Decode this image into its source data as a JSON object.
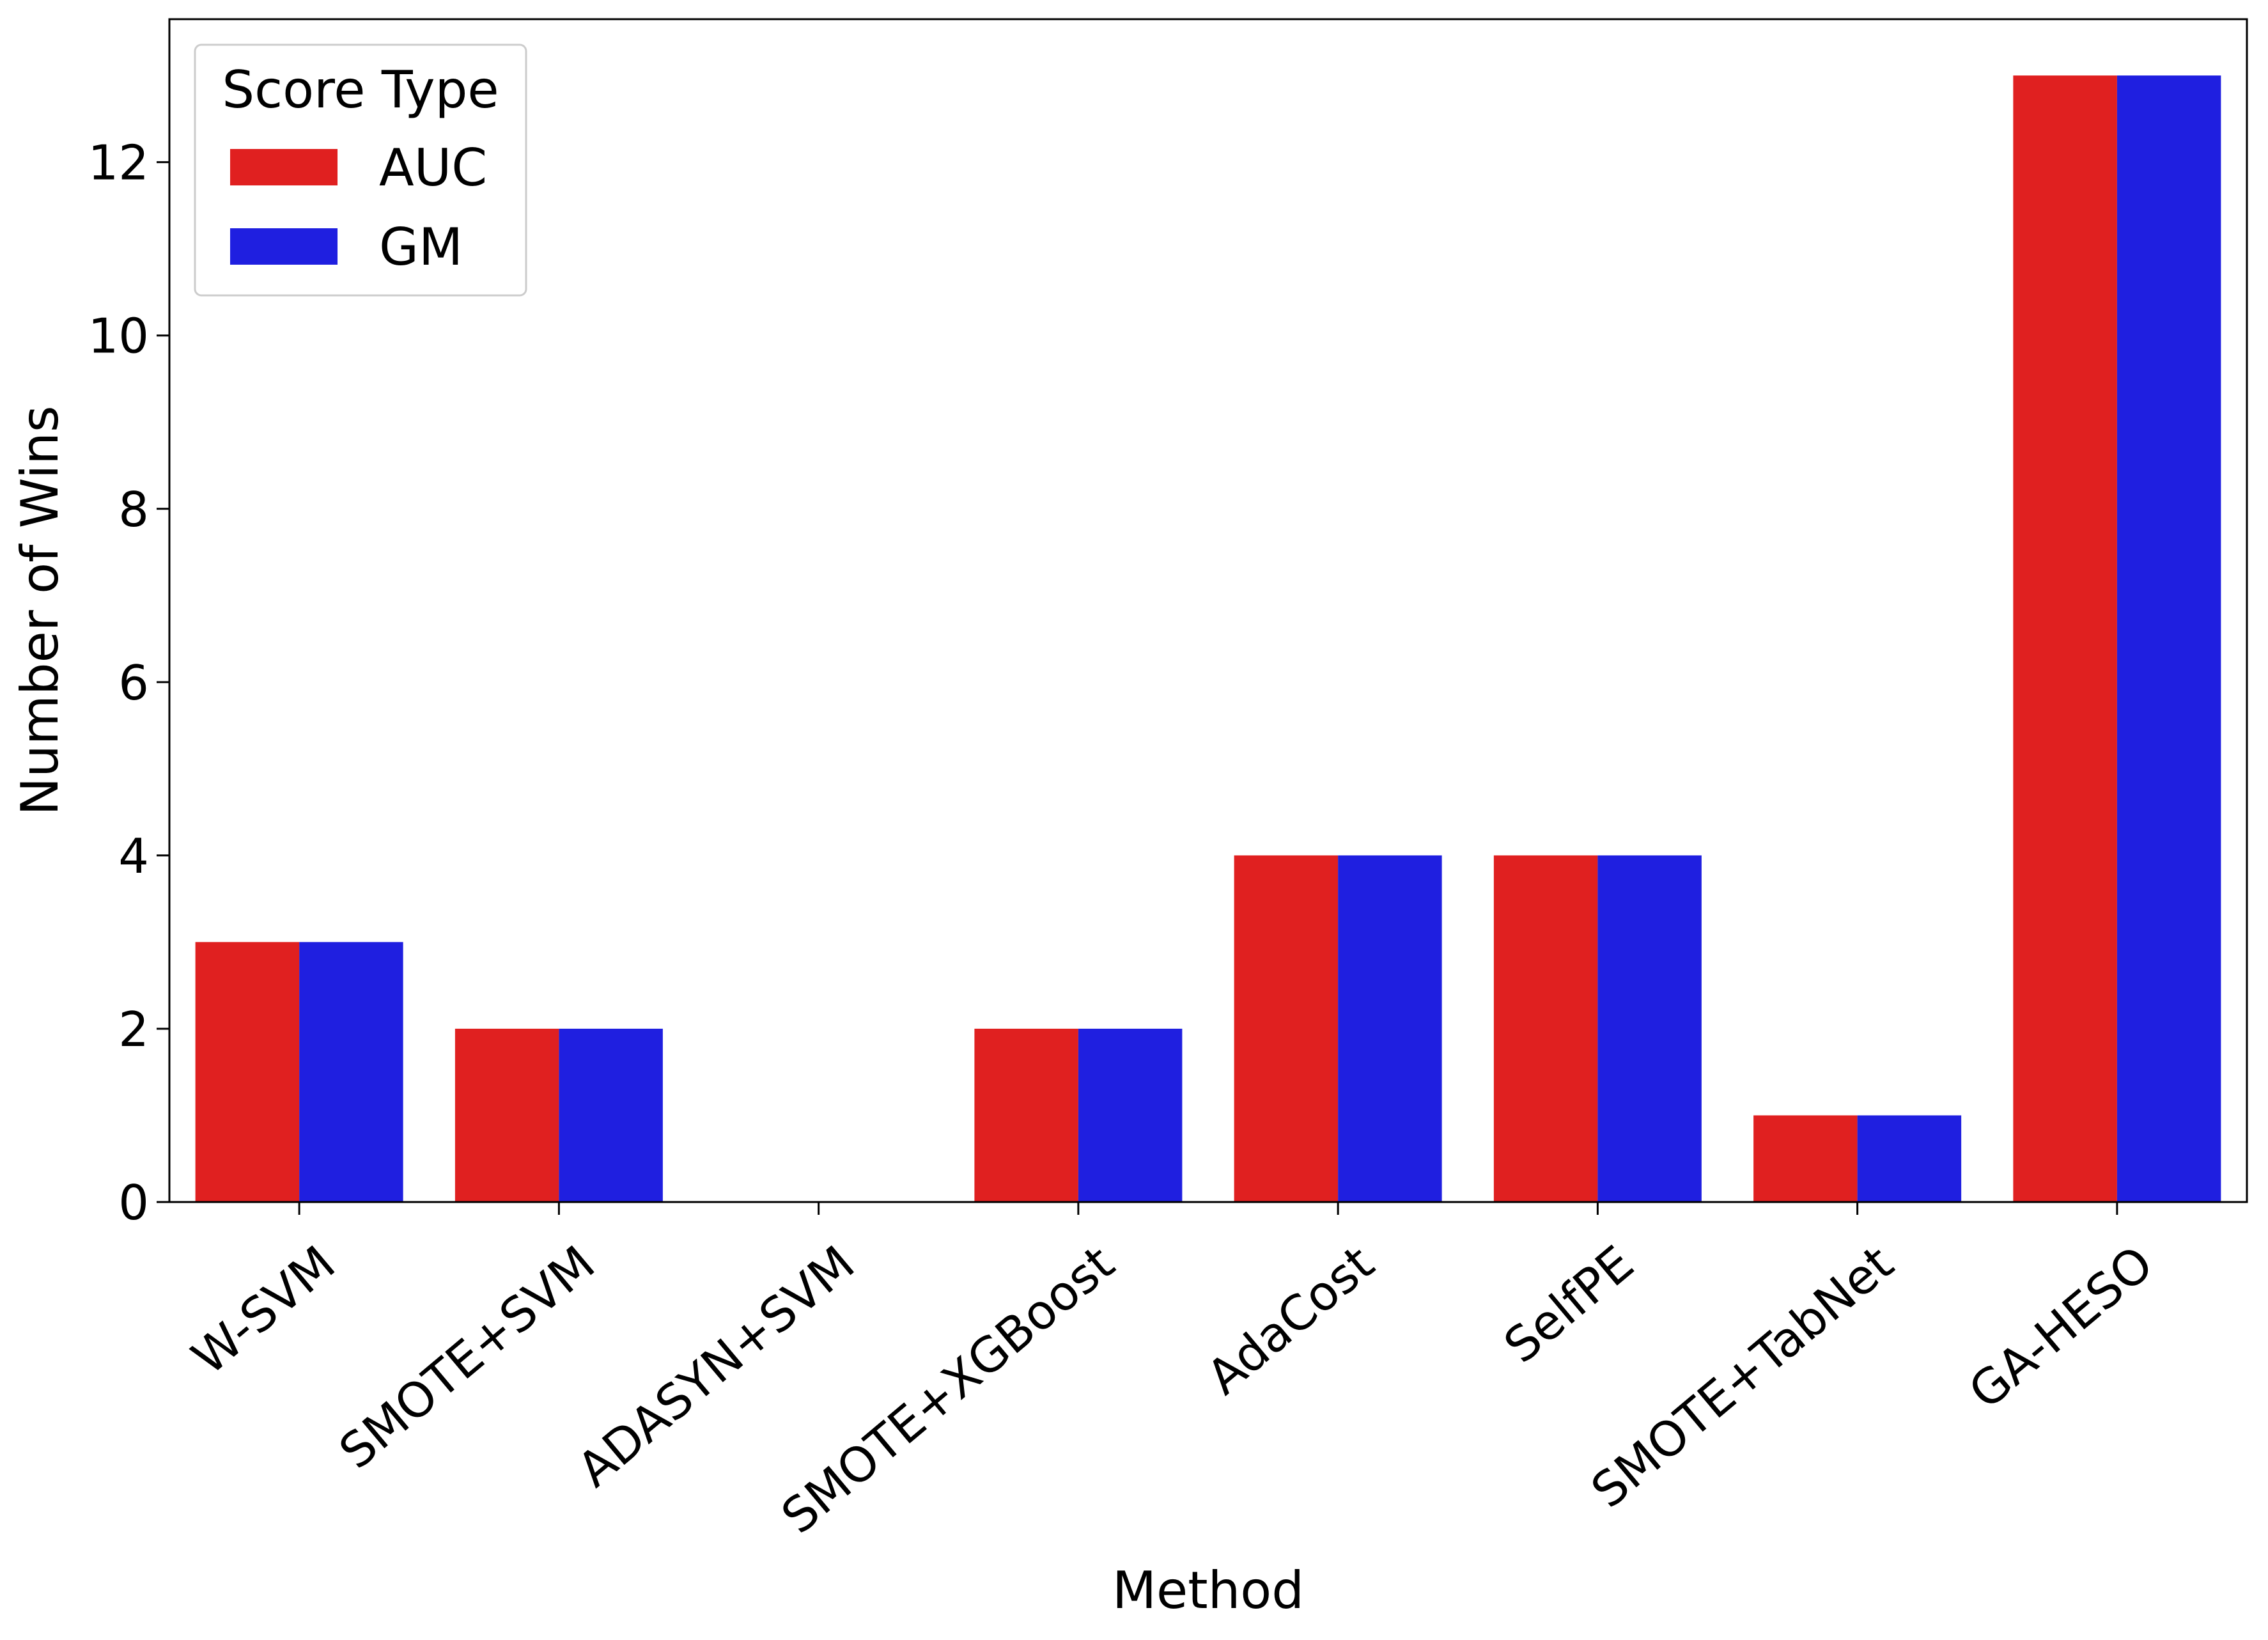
{
  "chart_data": {
    "type": "bar",
    "title": "",
    "xlabel": "Method",
    "ylabel": "Number of Wins",
    "categories": [
      "W-SVM",
      "SMOTE+SVM",
      "ADASYN+SVM",
      "SMOTE+XGBoost",
      "AdaCost",
      "SelfPE",
      "SMOTE+TabNet",
      "GA-HESO"
    ],
    "series": [
      {
        "name": "AUC",
        "color": "#e02020",
        "values": [
          3,
          2,
          0,
          2,
          4,
          4,
          1,
          13
        ]
      },
      {
        "name": "GM",
        "color": "#1f1fe0",
        "values": [
          3,
          2,
          0,
          2,
          4,
          4,
          1,
          13
        ]
      }
    ],
    "ylim": [
      0,
      13.65
    ],
    "yticks": [
      "0",
      "2",
      "4",
      "6",
      "8",
      "10",
      "12"
    ],
    "grid": false,
    "legend": {
      "title": "Score Type",
      "position": "top-left"
    }
  }
}
